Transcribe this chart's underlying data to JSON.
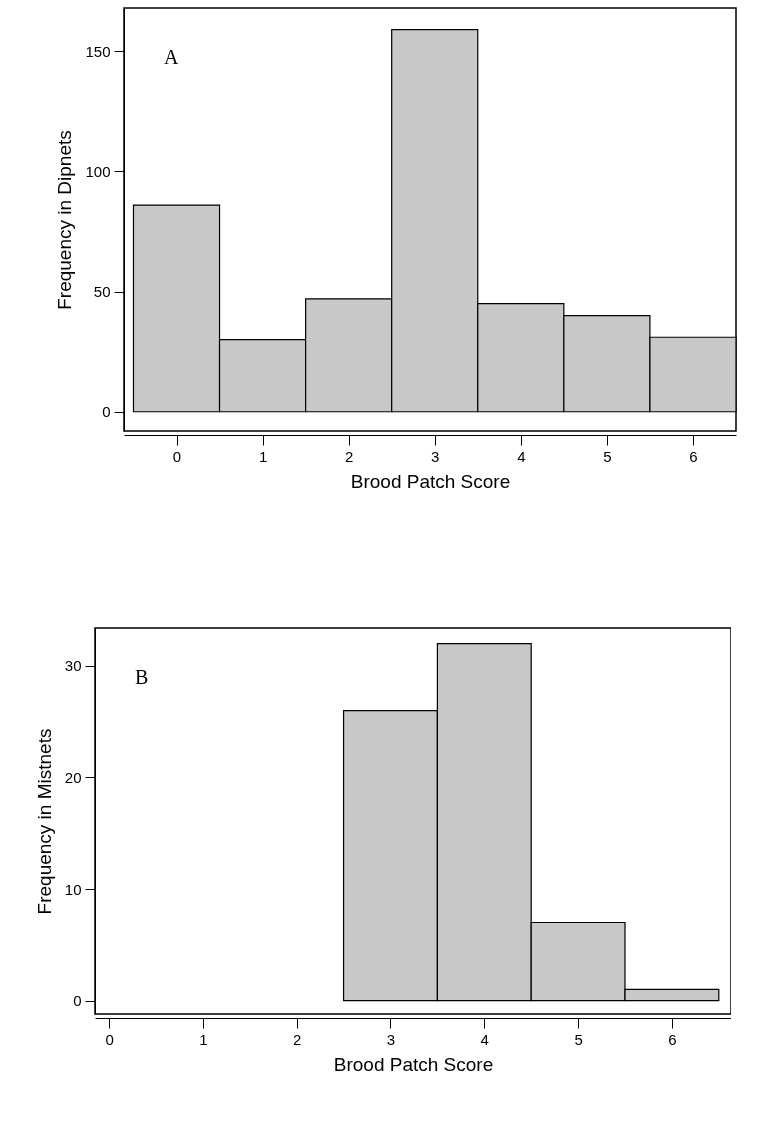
{
  "chart_data": [
    {
      "type": "histogram",
      "xlabel": "Brood Patch Score",
      "ylabel": "Frequency in Dipnets",
      "annotations": [
        "A"
      ],
      "bins": [
        -0.5,
        0.5,
        1.5,
        2.5,
        3.5,
        4.5,
        5.5,
        6.5
      ],
      "values": [
        86,
        30,
        47,
        159,
        45,
        40,
        31
      ],
      "color": "#c8c8c8",
      "xlim": [
        -0.61,
        6.5
      ],
      "xticks": [
        0,
        1,
        2,
        3,
        4,
        5,
        6
      ],
      "ylim": [
        -8,
        168
      ],
      "yticks": [
        0,
        50,
        100,
        150
      ]
    },
    {
      "type": "histogram",
      "xlabel": "Brood Patch Score",
      "ylabel": "Frequency in Mistnets",
      "annotations": [
        "B"
      ],
      "bins": [
        2.5,
        3.5,
        4.5,
        5.5,
        6.5
      ],
      "values": [
        26,
        32,
        7,
        1
      ],
      "color": "#c8c8c8",
      "xlim": [
        -0.15,
        6.63
      ],
      "xticks": [
        0,
        1,
        2,
        3,
        4,
        5,
        6
      ],
      "ylim": [
        -1.2,
        33.4
      ],
      "yticks": [
        0,
        10,
        20,
        30
      ]
    }
  ]
}
